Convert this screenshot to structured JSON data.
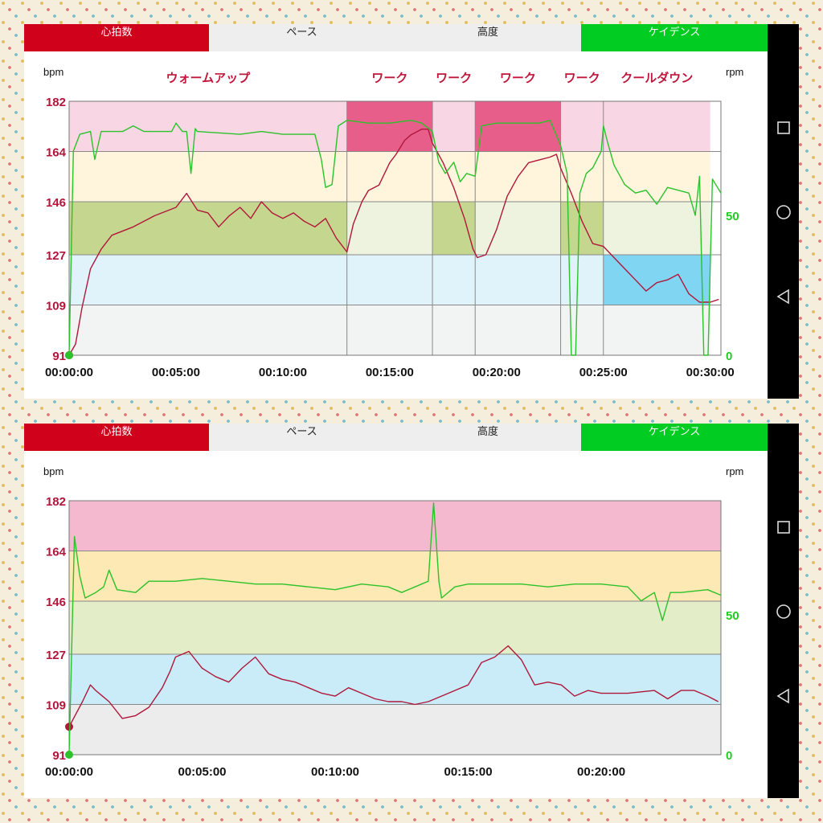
{
  "panels": [
    {
      "tabs": [
        {
          "label": "心拍数",
          "bg": "#d0021b",
          "fg": "#ffffff"
        },
        {
          "label": "ペース",
          "bg": "#eeeeee",
          "fg": "#222222"
        },
        {
          "label": "高度",
          "bg": "#eeeeee",
          "fg": "#222222"
        },
        {
          "label": "ケイデンス",
          "bg": "#00cc22",
          "fg": "#ffffff"
        }
      ],
      "chart_data": {
        "type": "line",
        "left_unit": "bpm",
        "right_unit": "rpm",
        "hr_ticks": [
          "91",
          "109",
          "127",
          "146",
          "164",
          "182"
        ],
        "rpm_ticks": [
          "0",
          "50"
        ],
        "time_ticks": [
          "00:00:00",
          "00:05:00",
          "00:10:00",
          "00:15:00",
          "00:20:00",
          "00:25:00",
          "00:30:00"
        ],
        "duration_min": 30.5,
        "phases": [
          {
            "label": "ウォームアップ",
            "start": 0,
            "end": 13,
            "zone": 3
          },
          {
            "label": "ワーク",
            "start": 13,
            "end": 17,
            "zone": 5
          },
          {
            "label": "ワーク",
            "start": 17,
            "end": 19,
            "zone": 3
          },
          {
            "label": "ワーク",
            "start": 19,
            "end": 23,
            "zone": 5
          },
          {
            "label": "ワーク",
            "start": 23,
            "end": 25,
            "zone": 3
          },
          {
            "label": "クールダウン",
            "start": 25,
            "end": 30,
            "zone": 2
          }
        ],
        "series": [
          {
            "key": "hr",
            "color": "#b0173a",
            "points": [
              [
                0,
                91
              ],
              [
                0.3,
                95
              ],
              [
                0.6,
                108
              ],
              [
                1,
                122
              ],
              [
                1.5,
                129
              ],
              [
                2,
                134
              ],
              [
                3,
                137
              ],
              [
                4,
                141
              ],
              [
                5,
                144
              ],
              [
                5.5,
                149
              ],
              [
                6,
                143
              ],
              [
                6.5,
                142
              ],
              [
                7,
                137
              ],
              [
                7.5,
                141
              ],
              [
                8,
                144
              ],
              [
                8.5,
                140
              ],
              [
                9,
                146
              ],
              [
                9.5,
                142
              ],
              [
                10,
                140
              ],
              [
                10.5,
                142
              ],
              [
                11,
                139
              ],
              [
                11.5,
                137
              ],
              [
                12,
                140
              ],
              [
                12.5,
                133
              ],
              [
                13,
                128
              ],
              [
                13.3,
                138
              ],
              [
                13.7,
                146
              ],
              [
                14,
                150
              ],
              [
                14.5,
                152
              ],
              [
                15,
                160
              ],
              [
                15.3,
                163
              ],
              [
                15.7,
                168
              ],
              [
                16,
                170
              ],
              [
                16.5,
                172
              ],
              [
                16.8,
                172
              ],
              [
                17,
                167
              ],
              [
                17.5,
                160
              ],
              [
                18,
                151
              ],
              [
                18.5,
                140
              ],
              [
                18.9,
                129
              ],
              [
                19.1,
                126
              ],
              [
                19.5,
                127
              ],
              [
                20,
                136
              ],
              [
                20.5,
                148
              ],
              [
                21,
                155
              ],
              [
                21.5,
                160
              ],
              [
                22,
                161
              ],
              [
                22.5,
                162
              ],
              [
                22.8,
                163
              ],
              [
                23,
                158
              ],
              [
                23.5,
                149
              ],
              [
                24,
                139
              ],
              [
                24.5,
                131
              ],
              [
                25,
                130
              ],
              [
                25.5,
                126
              ],
              [
                26,
                122
              ],
              [
                26.5,
                118
              ],
              [
                27,
                114
              ],
              [
                27.5,
                117
              ],
              [
                28,
                118
              ],
              [
                28.5,
                120
              ],
              [
                29,
                113
              ],
              [
                29.5,
                110
              ],
              [
                30,
                110
              ],
              [
                30.4,
                111
              ]
            ]
          },
          {
            "key": "cadence",
            "color": "#2bc22b",
            "points": [
              [
                0,
                0
              ],
              [
                0.2,
                73
              ],
              [
                0.5,
                79
              ],
              [
                1,
                80
              ],
              [
                1.2,
                70
              ],
              [
                1.5,
                80
              ],
              [
                2,
                80
              ],
              [
                2.5,
                80
              ],
              [
                3,
                82
              ],
              [
                3.5,
                80
              ],
              [
                4,
                80
              ],
              [
                4.8,
                80
              ],
              [
                5,
                83
              ],
              [
                5.3,
                80
              ],
              [
                5.5,
                80
              ],
              [
                5.7,
                65
              ],
              [
                5.9,
                81
              ],
              [
                6,
                80
              ],
              [
                8,
                79
              ],
              [
                9,
                80
              ],
              [
                10,
                79
              ],
              [
                11,
                79
              ],
              [
                11.5,
                79
              ],
              [
                11.8,
                70
              ],
              [
                12,
                60
              ],
              [
                12.3,
                61
              ],
              [
                12.6,
                82
              ],
              [
                13,
                84
              ],
              [
                14,
                83
              ],
              [
                15,
                83
              ],
              [
                16,
                84
              ],
              [
                16.5,
                83
              ],
              [
                17,
                80
              ],
              [
                17.3,
                69
              ],
              [
                17.6,
                65
              ],
              [
                18,
                69
              ],
              [
                18.3,
                62
              ],
              [
                18.6,
                65
              ],
              [
                19,
                64
              ],
              [
                19.3,
                82
              ],
              [
                20,
                83
              ],
              [
                21,
                83
              ],
              [
                22,
                83
              ],
              [
                22.5,
                84
              ],
              [
                23,
                75
              ],
              [
                23.3,
                65
              ],
              [
                23.5,
                0
              ],
              [
                23.7,
                0
              ],
              [
                23.9,
                58
              ],
              [
                24.2,
                65
              ],
              [
                24.5,
                67
              ],
              [
                24.9,
                73
              ],
              [
                25,
                82
              ],
              [
                25.2,
                76
              ],
              [
                25.5,
                68
              ],
              [
                26,
                61
              ],
              [
                26.5,
                58
              ],
              [
                27,
                59
              ],
              [
                27.5,
                54
              ],
              [
                28,
                60
              ],
              [
                29,
                58
              ],
              [
                29.3,
                50
              ],
              [
                29.5,
                64
              ],
              [
                29.7,
                0
              ],
              [
                29.9,
                0
              ],
              [
                30.1,
                63
              ],
              [
                30.5,
                58
              ]
            ]
          }
        ]
      }
    },
    {
      "tabs": [
        {
          "label": "心拍数",
          "bg": "#d0021b",
          "fg": "#ffffff"
        },
        {
          "label": "ペース",
          "bg": "#eeeeee",
          "fg": "#222222"
        },
        {
          "label": "高度",
          "bg": "#eeeeee",
          "fg": "#222222"
        },
        {
          "label": "ケイデンス",
          "bg": "#00cc22",
          "fg": "#ffffff"
        }
      ],
      "chart_data": {
        "type": "line",
        "left_unit": "bpm",
        "right_unit": "rpm",
        "hr_ticks": [
          "91",
          "109",
          "127",
          "146",
          "164",
          "182"
        ],
        "rpm_ticks": [
          "0",
          "50"
        ],
        "time_ticks": [
          "00:00:00",
          "00:05:00",
          "00:10:00",
          "00:15:00",
          "00:20:00"
        ],
        "duration_min": 24.5,
        "series": [
          {
            "key": "hr",
            "color": "#b0173a",
            "points": [
              [
                0,
                101
              ],
              [
                0.5,
                110
              ],
              [
                0.8,
                116
              ],
              [
                1,
                114
              ],
              [
                1.5,
                110
              ],
              [
                2,
                104
              ],
              [
                2.5,
                105
              ],
              [
                3,
                108
              ],
              [
                3.5,
                115
              ],
              [
                3.8,
                121
              ],
              [
                4,
                126
              ],
              [
                4.5,
                128
              ],
              [
                5,
                122
              ],
              [
                5.5,
                119
              ],
              [
                6,
                117
              ],
              [
                6.5,
                122
              ],
              [
                7,
                126
              ],
              [
                7.5,
                120
              ],
              [
                8,
                118
              ],
              [
                8.5,
                117
              ],
              [
                9,
                115
              ],
              [
                9.5,
                113
              ],
              [
                10,
                112
              ],
              [
                10.5,
                115
              ],
              [
                11,
                113
              ],
              [
                11.5,
                111
              ],
              [
                12,
                110
              ],
              [
                12.5,
                110
              ],
              [
                13,
                109
              ],
              [
                13.5,
                110
              ],
              [
                14,
                112
              ],
              [
                14.5,
                114
              ],
              [
                15,
                116
              ],
              [
                15.5,
                124
              ],
              [
                16,
                126
              ],
              [
                16.5,
                130
              ],
              [
                17,
                125
              ],
              [
                17.5,
                116
              ],
              [
                18,
                117
              ],
              [
                18.5,
                116
              ],
              [
                19,
                112
              ],
              [
                19.5,
                114
              ],
              [
                20,
                113
              ],
              [
                21,
                113
              ],
              [
                22,
                114
              ],
              [
                22.5,
                111
              ],
              [
                23,
                114
              ],
              [
                23.5,
                114
              ],
              [
                24,
                112
              ],
              [
                24.4,
                110
              ]
            ]
          },
          {
            "key": "cadence",
            "color": "#2bc22b",
            "points": [
              [
                0,
                0
              ],
              [
                0.2,
                78
              ],
              [
                0.4,
                64
              ],
              [
                0.6,
                56
              ],
              [
                1,
                58
              ],
              [
                1.3,
                60
              ],
              [
                1.5,
                66
              ],
              [
                1.8,
                59
              ],
              [
                2.5,
                58
              ],
              [
                3,
                62
              ],
              [
                4,
                62
              ],
              [
                5,
                63
              ],
              [
                6,
                62
              ],
              [
                7,
                61
              ],
              [
                8,
                61
              ],
              [
                9,
                60
              ],
              [
                10,
                59
              ],
              [
                11,
                61
              ],
              [
                12,
                60
              ],
              [
                12.5,
                58
              ],
              [
                13,
                60
              ],
              [
                13.5,
                62
              ],
              [
                13.7,
                90
              ],
              [
                13.9,
                62
              ],
              [
                14,
                56
              ],
              [
                14.5,
                60
              ],
              [
                15,
                61
              ],
              [
                16,
                61
              ],
              [
                17,
                61
              ],
              [
                18,
                60
              ],
              [
                19,
                61
              ],
              [
                20,
                61
              ],
              [
                21,
                60
              ],
              [
                21.5,
                55
              ],
              [
                22,
                58
              ],
              [
                22.3,
                48
              ],
              [
                22.6,
                58
              ],
              [
                23,
                58
              ],
              [
                24,
                59
              ],
              [
                24.5,
                57
              ]
            ]
          }
        ]
      }
    }
  ]
}
